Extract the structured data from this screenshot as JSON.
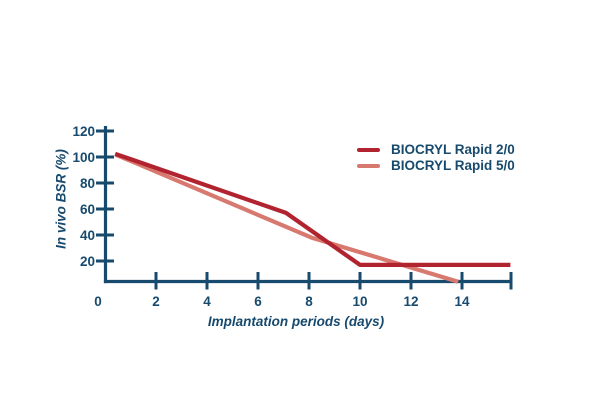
{
  "colors": {
    "axis": "#174a6d",
    "text": "#174a6d",
    "background": "#ffffff"
  },
  "chart_data": {
    "type": "line",
    "title": "",
    "xlabel": "Implantation periods (days)",
    "ylabel": "In vivo BSR (%)",
    "x_ticks": [
      0,
      2,
      4,
      6,
      8,
      10,
      12,
      14
    ],
    "y_ticks": [
      20,
      40,
      60,
      80,
      100,
      120
    ],
    "xlim": [
      0,
      16
    ],
    "ylim": [
      0,
      125
    ],
    "grid": false,
    "legend_position": "top-right",
    "series": [
      {
        "name": "BIOCRYL Rapid 2/0",
        "color": "#b22330",
        "points": [
          [
            0.4,
            102.5
          ],
          [
            7.1,
            57
          ],
          [
            10,
            17
          ],
          [
            15.9,
            17
          ]
        ]
      },
      {
        "name": "BIOCRYL Rapid 5/0",
        "color": "#d8796f",
        "points": [
          [
            0.4,
            102
          ],
          [
            8.1,
            38
          ],
          [
            13.85,
            4
          ]
        ]
      }
    ]
  }
}
